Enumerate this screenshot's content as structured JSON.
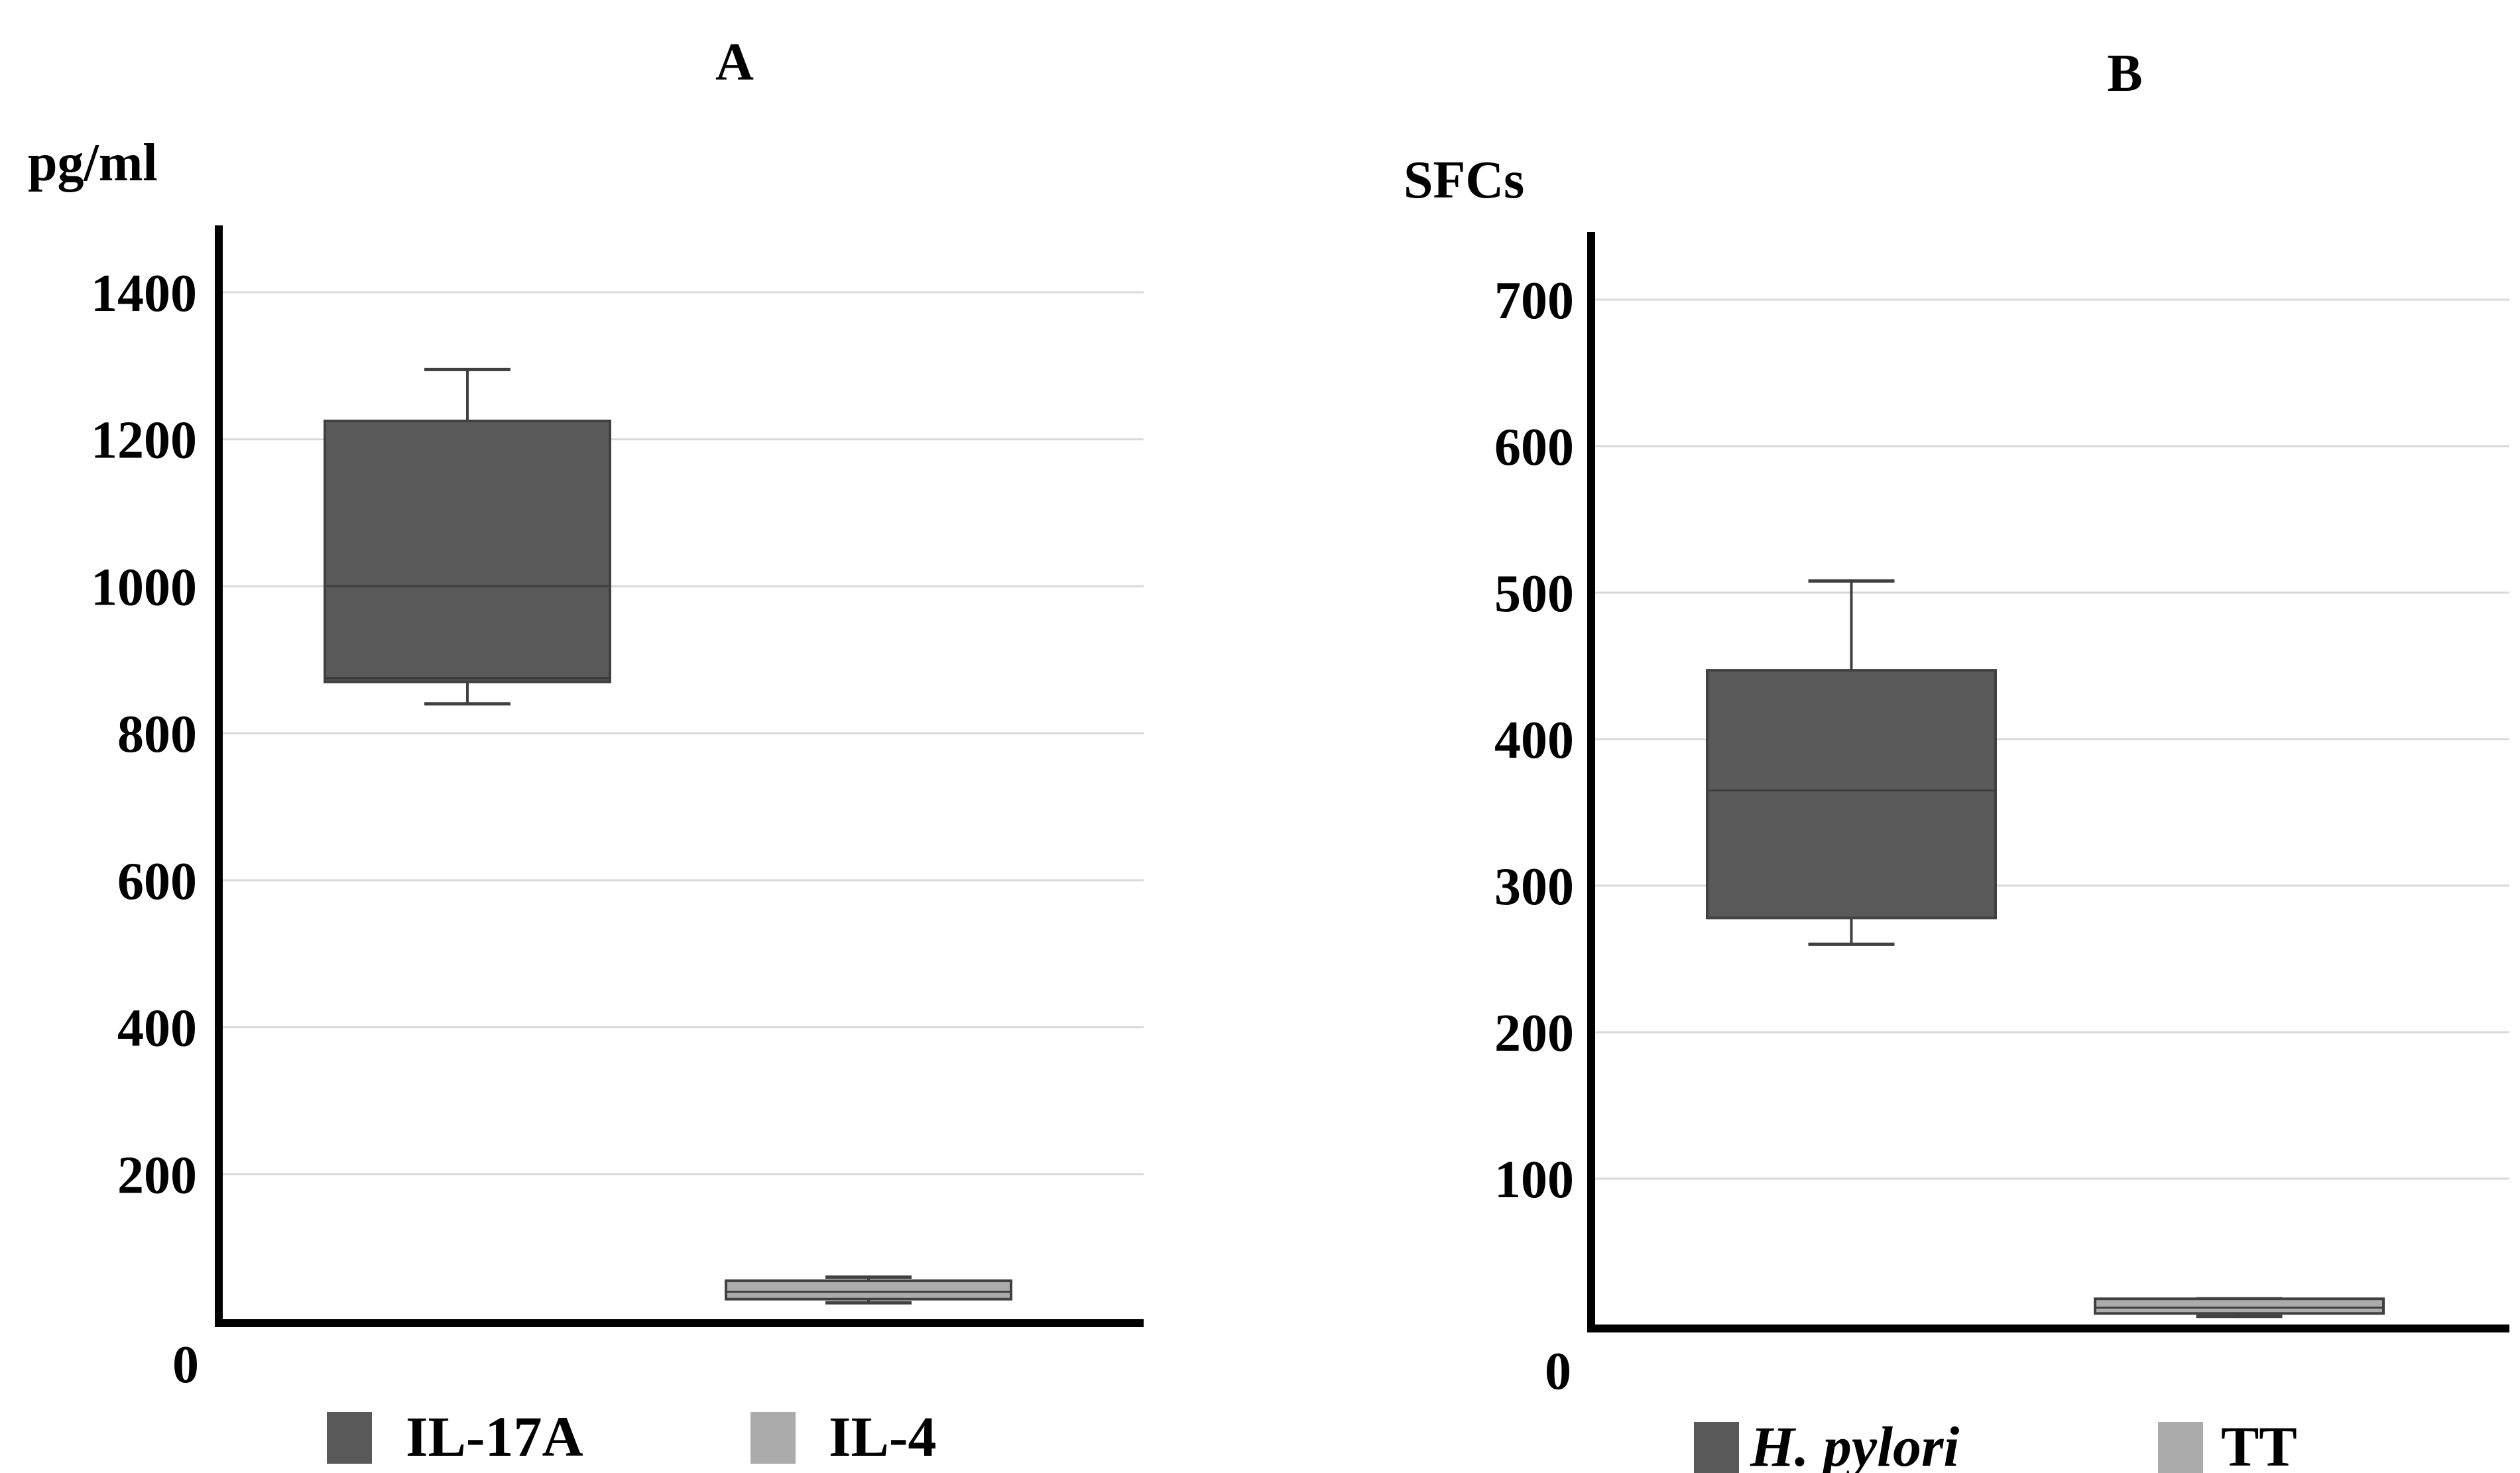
{
  "chart_data": [
    {
      "type": "box",
      "title": "A",
      "ylabel": "pg/ml",
      "ylim": [
        0,
        1500
      ],
      "yticks": [
        0,
        200,
        400,
        600,
        800,
        1000,
        1200,
        1400
      ],
      "grid": true,
      "legend_position": "bottom",
      "series": [
        {
          "name": "IL-17A",
          "color": "#595959",
          "whisker_low": 840,
          "q1": 870,
          "median": 1000,
          "q3": 1225,
          "whisker_high": 1295,
          "extra_line": 875
        },
        {
          "name": "IL-4",
          "color": "#ababab",
          "whisker_low": 25,
          "q1": 30,
          "median": 40,
          "q3": 55,
          "whisker_high": 60
        }
      ]
    },
    {
      "type": "box",
      "title": "B",
      "ylabel": "SFCs",
      "ylim": [
        0,
        750
      ],
      "yticks": [
        0,
        100,
        200,
        300,
        400,
        500,
        600,
        700
      ],
      "grid": true,
      "legend_position": "bottom",
      "series": [
        {
          "name": "H. pylori",
          "italic": true,
          "color": "#595959",
          "whisker_low": 260,
          "q1": 278,
          "median": 365,
          "q3": 447,
          "whisker_high": 508
        },
        {
          "name": "TT",
          "color": "#ababab",
          "whisker_low": 6,
          "q1": 8,
          "median": 12,
          "q3": 18,
          "whisker_high": 18
        }
      ]
    }
  ]
}
